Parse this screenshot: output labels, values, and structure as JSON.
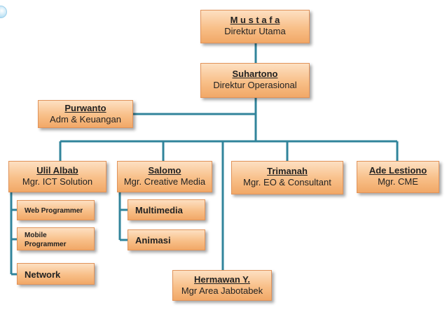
{
  "nodes": {
    "direktur_utama": {
      "name": "M u s t a f a",
      "role": "Direktur Utama"
    },
    "direktur_operasional": {
      "name": "Suhartono",
      "role": "Direktur Operasional"
    },
    "adm_keuangan": {
      "name": "Purwanto",
      "role": "Adm & Keuangan"
    },
    "ict": {
      "name": "Ulil Albab",
      "role": "Mgr. ICT Solution"
    },
    "creative": {
      "name": "Salomo",
      "role": "Mgr. Creative Media"
    },
    "eo": {
      "name": "Trimanah",
      "role": "Mgr. EO & Consultant"
    },
    "cme": {
      "name": "Ade Lestiono",
      "role": "Mgr. CME"
    },
    "jabotabek": {
      "name": "Hermawan Y.",
      "role": "Mgr Area Jabotabek"
    }
  },
  "sub_units": {
    "ict": [
      "Web Programmer",
      "Mobile Programmer",
      "Network"
    ],
    "creative": [
      "Multimedia",
      "Animasi"
    ]
  },
  "colors": {
    "connector": "#31849b",
    "box_fill": "#f8bf88",
    "box_border": "#e1935a"
  }
}
